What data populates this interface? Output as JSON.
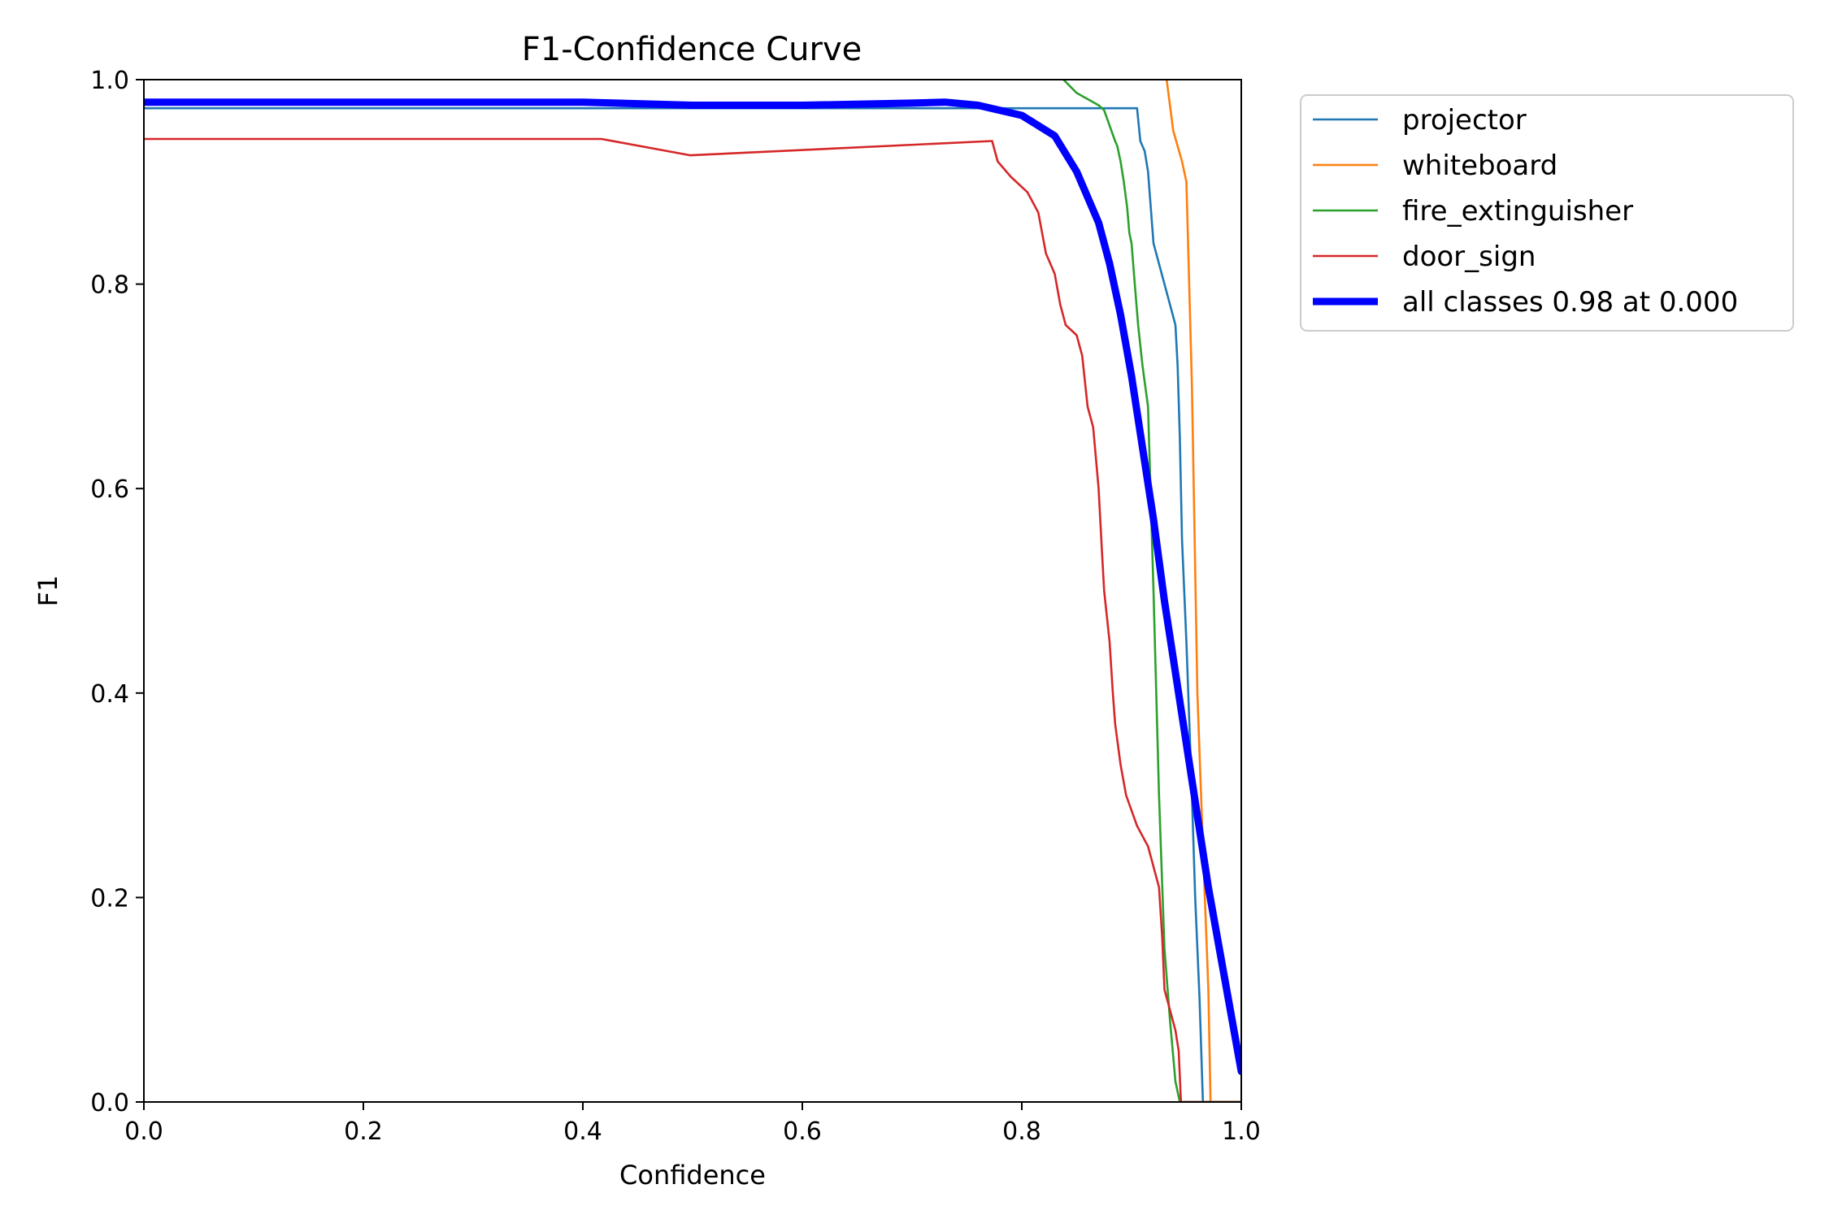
{
  "chart_data": {
    "type": "line",
    "title": "F1-Confidence Curve",
    "xlabel": "Confidence",
    "ylabel": "F1",
    "xlim": [
      0,
      1
    ],
    "ylim": [
      0,
      1
    ],
    "xticks": [
      "0.0",
      "0.2",
      "0.4",
      "0.6",
      "0.8",
      "1.0"
    ],
    "yticks": [
      "0.0",
      "0.2",
      "0.4",
      "0.6",
      "0.8",
      "1.0"
    ],
    "grid": false,
    "legend_position": "outside-top-right",
    "series": [
      {
        "name": "projector",
        "color": "#1f77b4",
        "x": [
          0.0,
          0.4,
          0.6,
          0.8,
          0.905,
          0.908,
          0.912,
          0.915,
          0.92,
          0.93,
          0.935,
          0.94,
          0.942,
          0.944,
          0.946,
          0.95,
          0.955,
          0.958,
          0.962,
          0.965,
          0.966,
          1.0
        ],
        "y": [
          0.972,
          0.972,
          0.972,
          0.972,
          0.972,
          0.94,
          0.93,
          0.91,
          0.84,
          0.8,
          0.78,
          0.76,
          0.72,
          0.65,
          0.55,
          0.45,
          0.3,
          0.2,
          0.1,
          0.0,
          0.0,
          0.0
        ]
      },
      {
        "name": "whiteboard",
        "color": "#ff7f0e",
        "x": [
          0.932,
          0.938,
          0.946,
          0.95,
          0.955,
          0.96,
          0.965,
          0.97,
          0.972,
          0.975,
          1.0
        ],
        "y": [
          1.0,
          0.95,
          0.92,
          0.9,
          0.7,
          0.4,
          0.25,
          0.11,
          0.0,
          0.0,
          0.0
        ],
        "note_none": ""
      },
      {
        "name": "fire_extinguisher",
        "color": "#2ca02c",
        "x": [
          0.838,
          0.85,
          0.87,
          0.875,
          0.88,
          0.885,
          0.887,
          0.89,
          0.893,
          0.896,
          0.898,
          0.9,
          0.903,
          0.906,
          0.91,
          0.915,
          0.92,
          0.925,
          0.93,
          0.935,
          0.94,
          0.944,
          0.945,
          1.0
        ],
        "y": [
          1.0,
          0.987,
          0.975,
          0.97,
          0.955,
          0.94,
          0.935,
          0.92,
          0.9,
          0.875,
          0.85,
          0.84,
          0.8,
          0.76,
          0.72,
          0.68,
          0.5,
          0.3,
          0.15,
          0.08,
          0.02,
          0.0,
          0.0,
          0.0
        ]
      },
      {
        "name": "door_sign",
        "color": "#d62728",
        "x": [
          0.0,
          0.417,
          0.498,
          0.773,
          0.778,
          0.79,
          0.805,
          0.815,
          0.822,
          0.83,
          0.835,
          0.84,
          0.85,
          0.855,
          0.86,
          0.865,
          0.87,
          0.873,
          0.875,
          0.88,
          0.883,
          0.885,
          0.89,
          0.895,
          0.905,
          0.915,
          0.925,
          0.928,
          0.93,
          0.935,
          0.94,
          0.943,
          0.945,
          1.0
        ],
        "y": [
          0.942,
          0.942,
          0.926,
          0.94,
          0.92,
          0.905,
          0.89,
          0.87,
          0.83,
          0.81,
          0.78,
          0.76,
          0.75,
          0.73,
          0.68,
          0.66,
          0.6,
          0.54,
          0.5,
          0.45,
          0.4,
          0.37,
          0.33,
          0.3,
          0.27,
          0.25,
          0.21,
          0.16,
          0.11,
          0.09,
          0.07,
          0.05,
          0.0,
          0.0
        ]
      },
      {
        "name": "all classes 0.98 at 0.000",
        "color": "#0000ff",
        "bold": true,
        "x": [
          0.0,
          0.3,
          0.4,
          0.5,
          0.6,
          0.7,
          0.73,
          0.76,
          0.8,
          0.83,
          0.85,
          0.87,
          0.88,
          0.89,
          0.9,
          0.91,
          0.92,
          0.93,
          0.94,
          0.95,
          0.96,
          0.97,
          0.98,
          0.99,
          1.0
        ],
        "y": [
          0.978,
          0.978,
          0.978,
          0.975,
          0.975,
          0.977,
          0.978,
          0.975,
          0.965,
          0.945,
          0.91,
          0.86,
          0.82,
          0.77,
          0.71,
          0.64,
          0.57,
          0.49,
          0.42,
          0.35,
          0.28,
          0.21,
          0.15,
          0.09,
          0.03
        ]
      }
    ]
  }
}
